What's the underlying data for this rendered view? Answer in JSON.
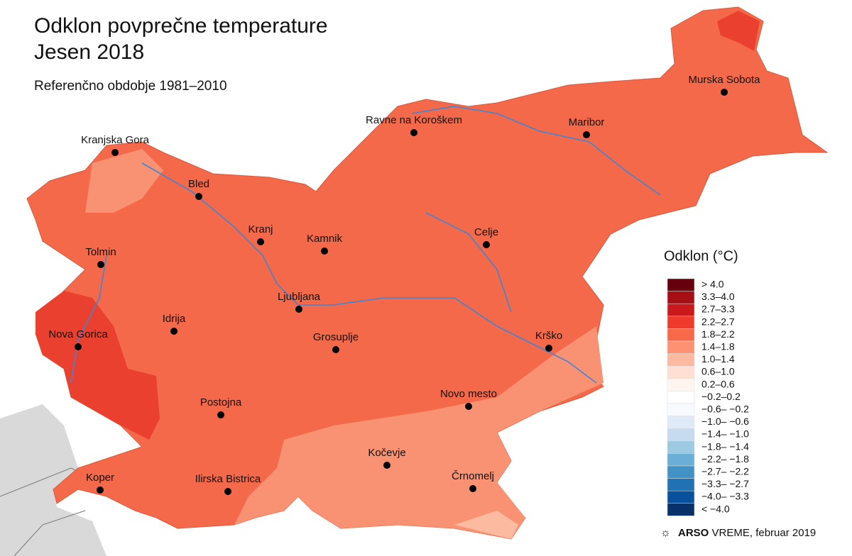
{
  "header": {
    "title": "Odklon povprečne temperature",
    "season": "Jesen 2018",
    "subtitle": "Referenčno obdobje 1981–2010"
  },
  "cities": [
    "Murska Sobota",
    "Ravne na Koroškem",
    "Maribor",
    "Kranjska Gora",
    "Bled",
    "Kranj",
    "Kamnik",
    "Celje",
    "Tolmin",
    "Ljubljana",
    "Idrija",
    "Nova Gorica",
    "Grosuplje",
    "Krško",
    "Novo mesto",
    "Postojna",
    "Kočevje",
    "Črnomelj",
    "Koper",
    "Ilirska Bistrica"
  ],
  "legend": {
    "title": "Odklon (°C)",
    "entries": [
      {
        "label": "> 4.0",
        "color": "#67000d"
      },
      {
        "label": "3.3–4.0",
        "color": "#a50f15"
      },
      {
        "label": "2.7–3.3",
        "color": "#cb181d"
      },
      {
        "label": "2.2–2.7",
        "color": "#ef3b2c"
      },
      {
        "label": "1.8–2.2",
        "color": "#f8694a"
      },
      {
        "label": "1.4–1.8",
        "color": "#fc9272"
      },
      {
        "label": "1.0–1.4",
        "color": "#fcbba1"
      },
      {
        "label": "0.6–1.0",
        "color": "#fee0d2"
      },
      {
        "label": "0.2–0.6",
        "color": "#fff5f0"
      },
      {
        "label": "−0.2–0.2",
        "color": "#ffffff"
      },
      {
        "label": "−0.6– −0.2",
        "color": "#f7fbff"
      },
      {
        "label": "−1.0– −0.6",
        "color": "#deebf7"
      },
      {
        "label": "−1.4– −1.0",
        "color": "#c6dbef"
      },
      {
        "label": "−1.8– −1.4",
        "color": "#9ecae1"
      },
      {
        "label": "−2.2– −1.8",
        "color": "#6baed6"
      },
      {
        "label": "−2.7– −2.2",
        "color": "#4292c6"
      },
      {
        "label": "−3.3– −2.7",
        "color": "#2171b5"
      },
      {
        "label": "−4.0– −3.3",
        "color": "#08519c"
      },
      {
        "label": "< −4.0",
        "color": "#08306b"
      }
    ]
  },
  "credit": {
    "brand": "ARSO",
    "service": "VREME",
    "date": ", februar 2019"
  }
}
